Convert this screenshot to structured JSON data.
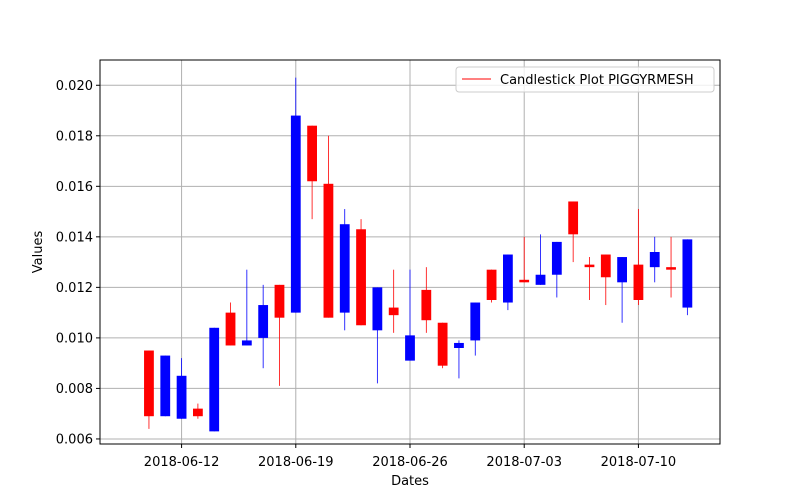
{
  "chart_data": {
    "type": "candlestick",
    "xlabel": "Dates",
    "ylabel": "Values",
    "ylim": [
      0.0058,
      0.021
    ],
    "xlim": [
      "2018-06-07",
      "2018-07-15"
    ],
    "x_ticks": [
      "2018-06-12",
      "2018-06-19",
      "2018-06-26",
      "2018-07-03",
      "2018-07-10"
    ],
    "y_ticks": [
      "0.006",
      "0.008",
      "0.010",
      "0.012",
      "0.014",
      "0.016",
      "0.018",
      "0.020"
    ],
    "grid": true,
    "legend": {
      "position": "top-right",
      "label": "Candlestick Plot PIGGYRMESH"
    },
    "colors": {
      "up": "#0000ff",
      "down": "#ff0000"
    },
    "candles": [
      {
        "date": "2018-06-10",
        "open": 0.0095,
        "close": 0.0069,
        "high": 0.0095,
        "low": 0.0064
      },
      {
        "date": "2018-06-11",
        "open": 0.0069,
        "close": 0.0093,
        "high": 0.0093,
        "low": 0.0069
      },
      {
        "date": "2018-06-12",
        "open": 0.0068,
        "close": 0.0085,
        "high": 0.0092,
        "low": 0.0068
      },
      {
        "date": "2018-06-13",
        "open": 0.0072,
        "close": 0.0069,
        "high": 0.0074,
        "low": 0.0068
      },
      {
        "date": "2018-06-14",
        "open": 0.0063,
        "close": 0.0104,
        "high": 0.0104,
        "low": 0.0063
      },
      {
        "date": "2018-06-15",
        "open": 0.011,
        "close": 0.0097,
        "high": 0.0114,
        "low": 0.0097
      },
      {
        "date": "2018-06-16",
        "open": 0.0097,
        "close": 0.0099,
        "high": 0.0127,
        "low": 0.0097
      },
      {
        "date": "2018-06-17",
        "open": 0.01,
        "close": 0.0113,
        "high": 0.0121,
        "low": 0.0088
      },
      {
        "date": "2018-06-18",
        "open": 0.0121,
        "close": 0.0108,
        "high": 0.0121,
        "low": 0.0081
      },
      {
        "date": "2018-06-19",
        "open": 0.011,
        "close": 0.0188,
        "high": 0.0203,
        "low": 0.011
      },
      {
        "date": "2018-06-20",
        "open": 0.0184,
        "close": 0.0162,
        "high": 0.0184,
        "low": 0.0147
      },
      {
        "date": "2018-06-21",
        "open": 0.0161,
        "close": 0.0108,
        "high": 0.018,
        "low": 0.0108
      },
      {
        "date": "2018-06-22",
        "open": 0.011,
        "close": 0.0145,
        "high": 0.0151,
        "low": 0.0103
      },
      {
        "date": "2018-06-23",
        "open": 0.0143,
        "close": 0.0105,
        "high": 0.0147,
        "low": 0.0105
      },
      {
        "date": "2018-06-24",
        "open": 0.0103,
        "close": 0.012,
        "high": 0.012,
        "low": 0.0082
      },
      {
        "date": "2018-06-25",
        "open": 0.0112,
        "close": 0.0109,
        "high": 0.0127,
        "low": 0.0102
      },
      {
        "date": "2018-06-26",
        "open": 0.0091,
        "close": 0.0101,
        "high": 0.0127,
        "low": 0.0091
      },
      {
        "date": "2018-06-27",
        "open": 0.0119,
        "close": 0.0107,
        "high": 0.0128,
        "low": 0.0102
      },
      {
        "date": "2018-06-28",
        "open": 0.0106,
        "close": 0.0089,
        "high": 0.0106,
        "low": 0.0088
      },
      {
        "date": "2018-06-29",
        "open": 0.0096,
        "close": 0.0098,
        "high": 0.0099,
        "low": 0.0084
      },
      {
        "date": "2018-06-30",
        "open": 0.0099,
        "close": 0.0114,
        "high": 0.0114,
        "low": 0.0093
      },
      {
        "date": "2018-07-01",
        "open": 0.0127,
        "close": 0.0115,
        "high": 0.0127,
        "low": 0.0114
      },
      {
        "date": "2018-07-02",
        "open": 0.0114,
        "close": 0.0133,
        "high": 0.0133,
        "low": 0.0111
      },
      {
        "date": "2018-07-03",
        "open": 0.0123,
        "close": 0.0122,
        "high": 0.014,
        "low": 0.0122
      },
      {
        "date": "2018-07-04",
        "open": 0.0121,
        "close": 0.0125,
        "high": 0.0141,
        "low": 0.0121
      },
      {
        "date": "2018-07-05",
        "open": 0.0125,
        "close": 0.0138,
        "high": 0.0138,
        "low": 0.0116
      },
      {
        "date": "2018-07-06",
        "open": 0.0154,
        "close": 0.0141,
        "high": 0.0154,
        "low": 0.013
      },
      {
        "date": "2018-07-07",
        "open": 0.0129,
        "close": 0.0128,
        "high": 0.0132,
        "low": 0.0115
      },
      {
        "date": "2018-07-08",
        "open": 0.0133,
        "close": 0.0124,
        "high": 0.0133,
        "low": 0.0113
      },
      {
        "date": "2018-07-09",
        "open": 0.0122,
        "close": 0.0132,
        "high": 0.0132,
        "low": 0.0106
      },
      {
        "date": "2018-07-10",
        "open": 0.0129,
        "close": 0.0115,
        "high": 0.0151,
        "low": 0.0113
      },
      {
        "date": "2018-07-11",
        "open": 0.0128,
        "close": 0.0134,
        "high": 0.014,
        "low": 0.0122
      },
      {
        "date": "2018-07-12",
        "open": 0.0128,
        "close": 0.0127,
        "high": 0.014,
        "low": 0.0116
      },
      {
        "date": "2018-07-13",
        "open": 0.0112,
        "close": 0.0139,
        "high": 0.0139,
        "low": 0.0109
      }
    ]
  }
}
